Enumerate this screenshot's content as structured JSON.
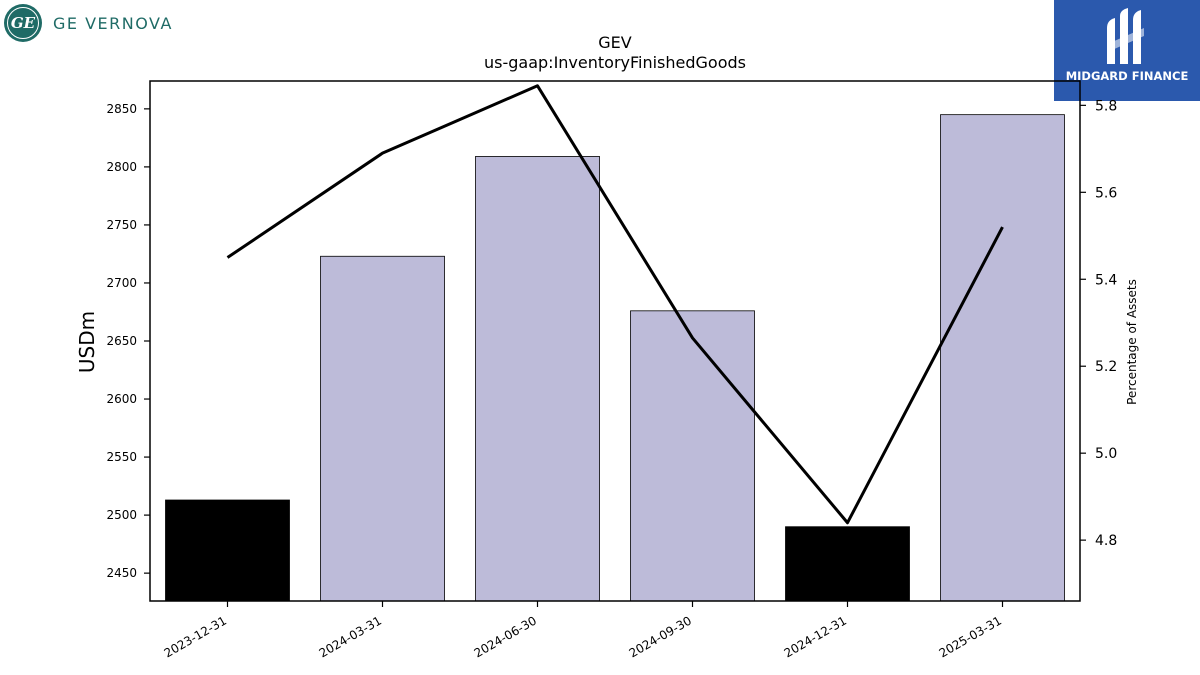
{
  "logos": {
    "left": {
      "glyph": "GE",
      "text": "GE VERNOVA",
      "color": "#1f6b66"
    },
    "right": {
      "text": "MIDGARD FINANCE",
      "color": "#2b59ad"
    }
  },
  "chart_data": {
    "type": "bar",
    "title": "GEV",
    "subtitle": "us-gaap:InventoryFinishedGoods",
    "ylabel": "USDm",
    "y2label": "Percentage of Assets",
    "categories": [
      "2023-12-31",
      "2024-03-31",
      "2024-06-30",
      "2024-09-30",
      "2024-12-31",
      "2025-03-31"
    ],
    "ylim": [
      2426,
      2874
    ],
    "yticks": [
      "2450",
      "2500",
      "2550",
      "2600",
      "2650",
      "2700",
      "2750",
      "2800",
      "2850"
    ],
    "y2lim": [
      4.66,
      5.856
    ],
    "y2ticks": [
      "4.8",
      "5.0",
      "5.2",
      "5.4",
      "5.6",
      "5.8"
    ],
    "series": [
      {
        "kind": "bar",
        "values": [
          2513,
          2723,
          2809,
          2676,
          2490,
          2845
        ],
        "colors": [
          "#000000",
          "#bdbbd9",
          "#bdbbd9",
          "#bdbbd9",
          "#000000",
          "#bdbbd9"
        ]
      },
      {
        "kind": "line",
        "axis": "right",
        "values": [
          5.45,
          5.69,
          5.845,
          5.265,
          4.84,
          5.52
        ],
        "color": "#000000"
      }
    ],
    "grid": false,
    "legend": "none"
  }
}
